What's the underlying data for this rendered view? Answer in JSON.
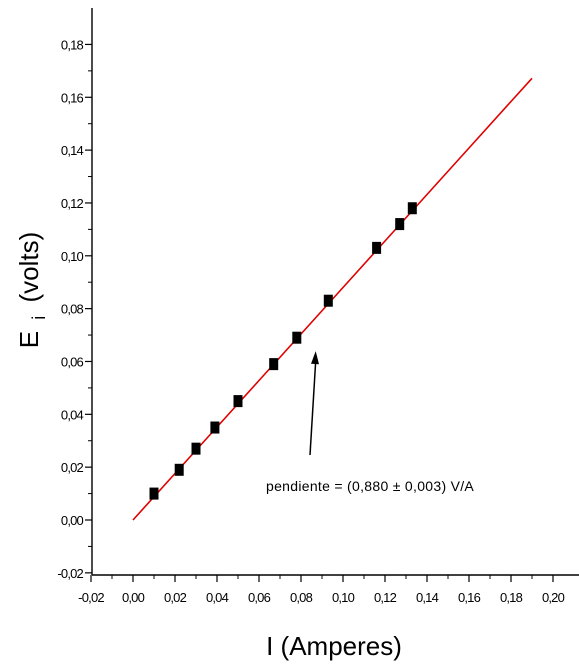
{
  "chart_data": {
    "type": "scatter",
    "title": "",
    "xlabel": "I (Amperes)",
    "ylabel_main": "E",
    "ylabel_sub": "i",
    "ylabel_rest": "(volts)",
    "xlim": [
      -0.02,
      0.2
    ],
    "ylim": [
      -0.02,
      0.18
    ],
    "x_ticks": [
      "-0,02",
      "0,00",
      "0,02",
      "0,04",
      "0,06",
      "0,08",
      "0,10",
      "0,12",
      "0,14",
      "0,16",
      "0,18",
      "0,20"
    ],
    "y_ticks": [
      "-0,02",
      "0,00",
      "0,02",
      "0,04",
      "0,06",
      "0,08",
      "0,10",
      "0,12",
      "0,14",
      "0,16",
      "0,18"
    ],
    "grid": false,
    "series": [
      {
        "type": "scatter",
        "marker": "square",
        "color": "#000000",
        "x": [
          0.01,
          0.022,
          0.03,
          0.039,
          0.05,
          0.067,
          0.078,
          0.093,
          0.116,
          0.127,
          0.133
        ],
        "y": [
          0.01,
          0.019,
          0.027,
          0.035,
          0.045,
          0.059,
          0.069,
          0.083,
          0.103,
          0.112,
          0.118
        ]
      },
      {
        "type": "line",
        "color": "#e00000",
        "x": [
          0.0,
          0.02,
          0.04,
          0.06,
          0.08,
          0.1,
          0.12,
          0.14,
          0.16,
          0.18,
          0.19
        ],
        "y": [
          0.0,
          0.0176,
          0.0352,
          0.0528,
          0.0704,
          0.088,
          0.1056,
          0.1232,
          0.1408,
          0.1584,
          0.1672
        ]
      }
    ],
    "annotation": {
      "text": "pendiente = (0,880 ± 0,003) V/A",
      "points_to": [
        0.087,
        0.07
      ]
    }
  }
}
